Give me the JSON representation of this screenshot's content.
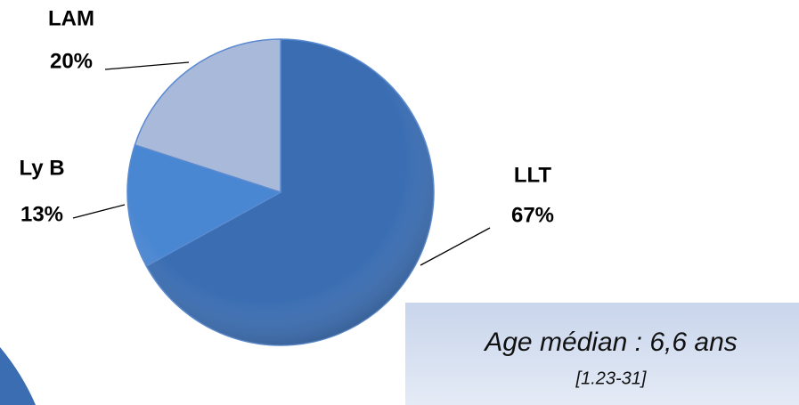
{
  "chart_data": {
    "type": "pie",
    "categories": [
      "LLT",
      "Ly B",
      "LAM"
    ],
    "values": [
      67,
      13,
      20
    ],
    "value_labels": [
      "67%",
      "13%",
      "20%"
    ],
    "colors": [
      "#3a6db2",
      "#4a87d2",
      "#a9b9d9"
    ],
    "annotation": {
      "title": "Age médian : 6,6  ans",
      "subtitle": "[1.23-31]"
    }
  }
}
